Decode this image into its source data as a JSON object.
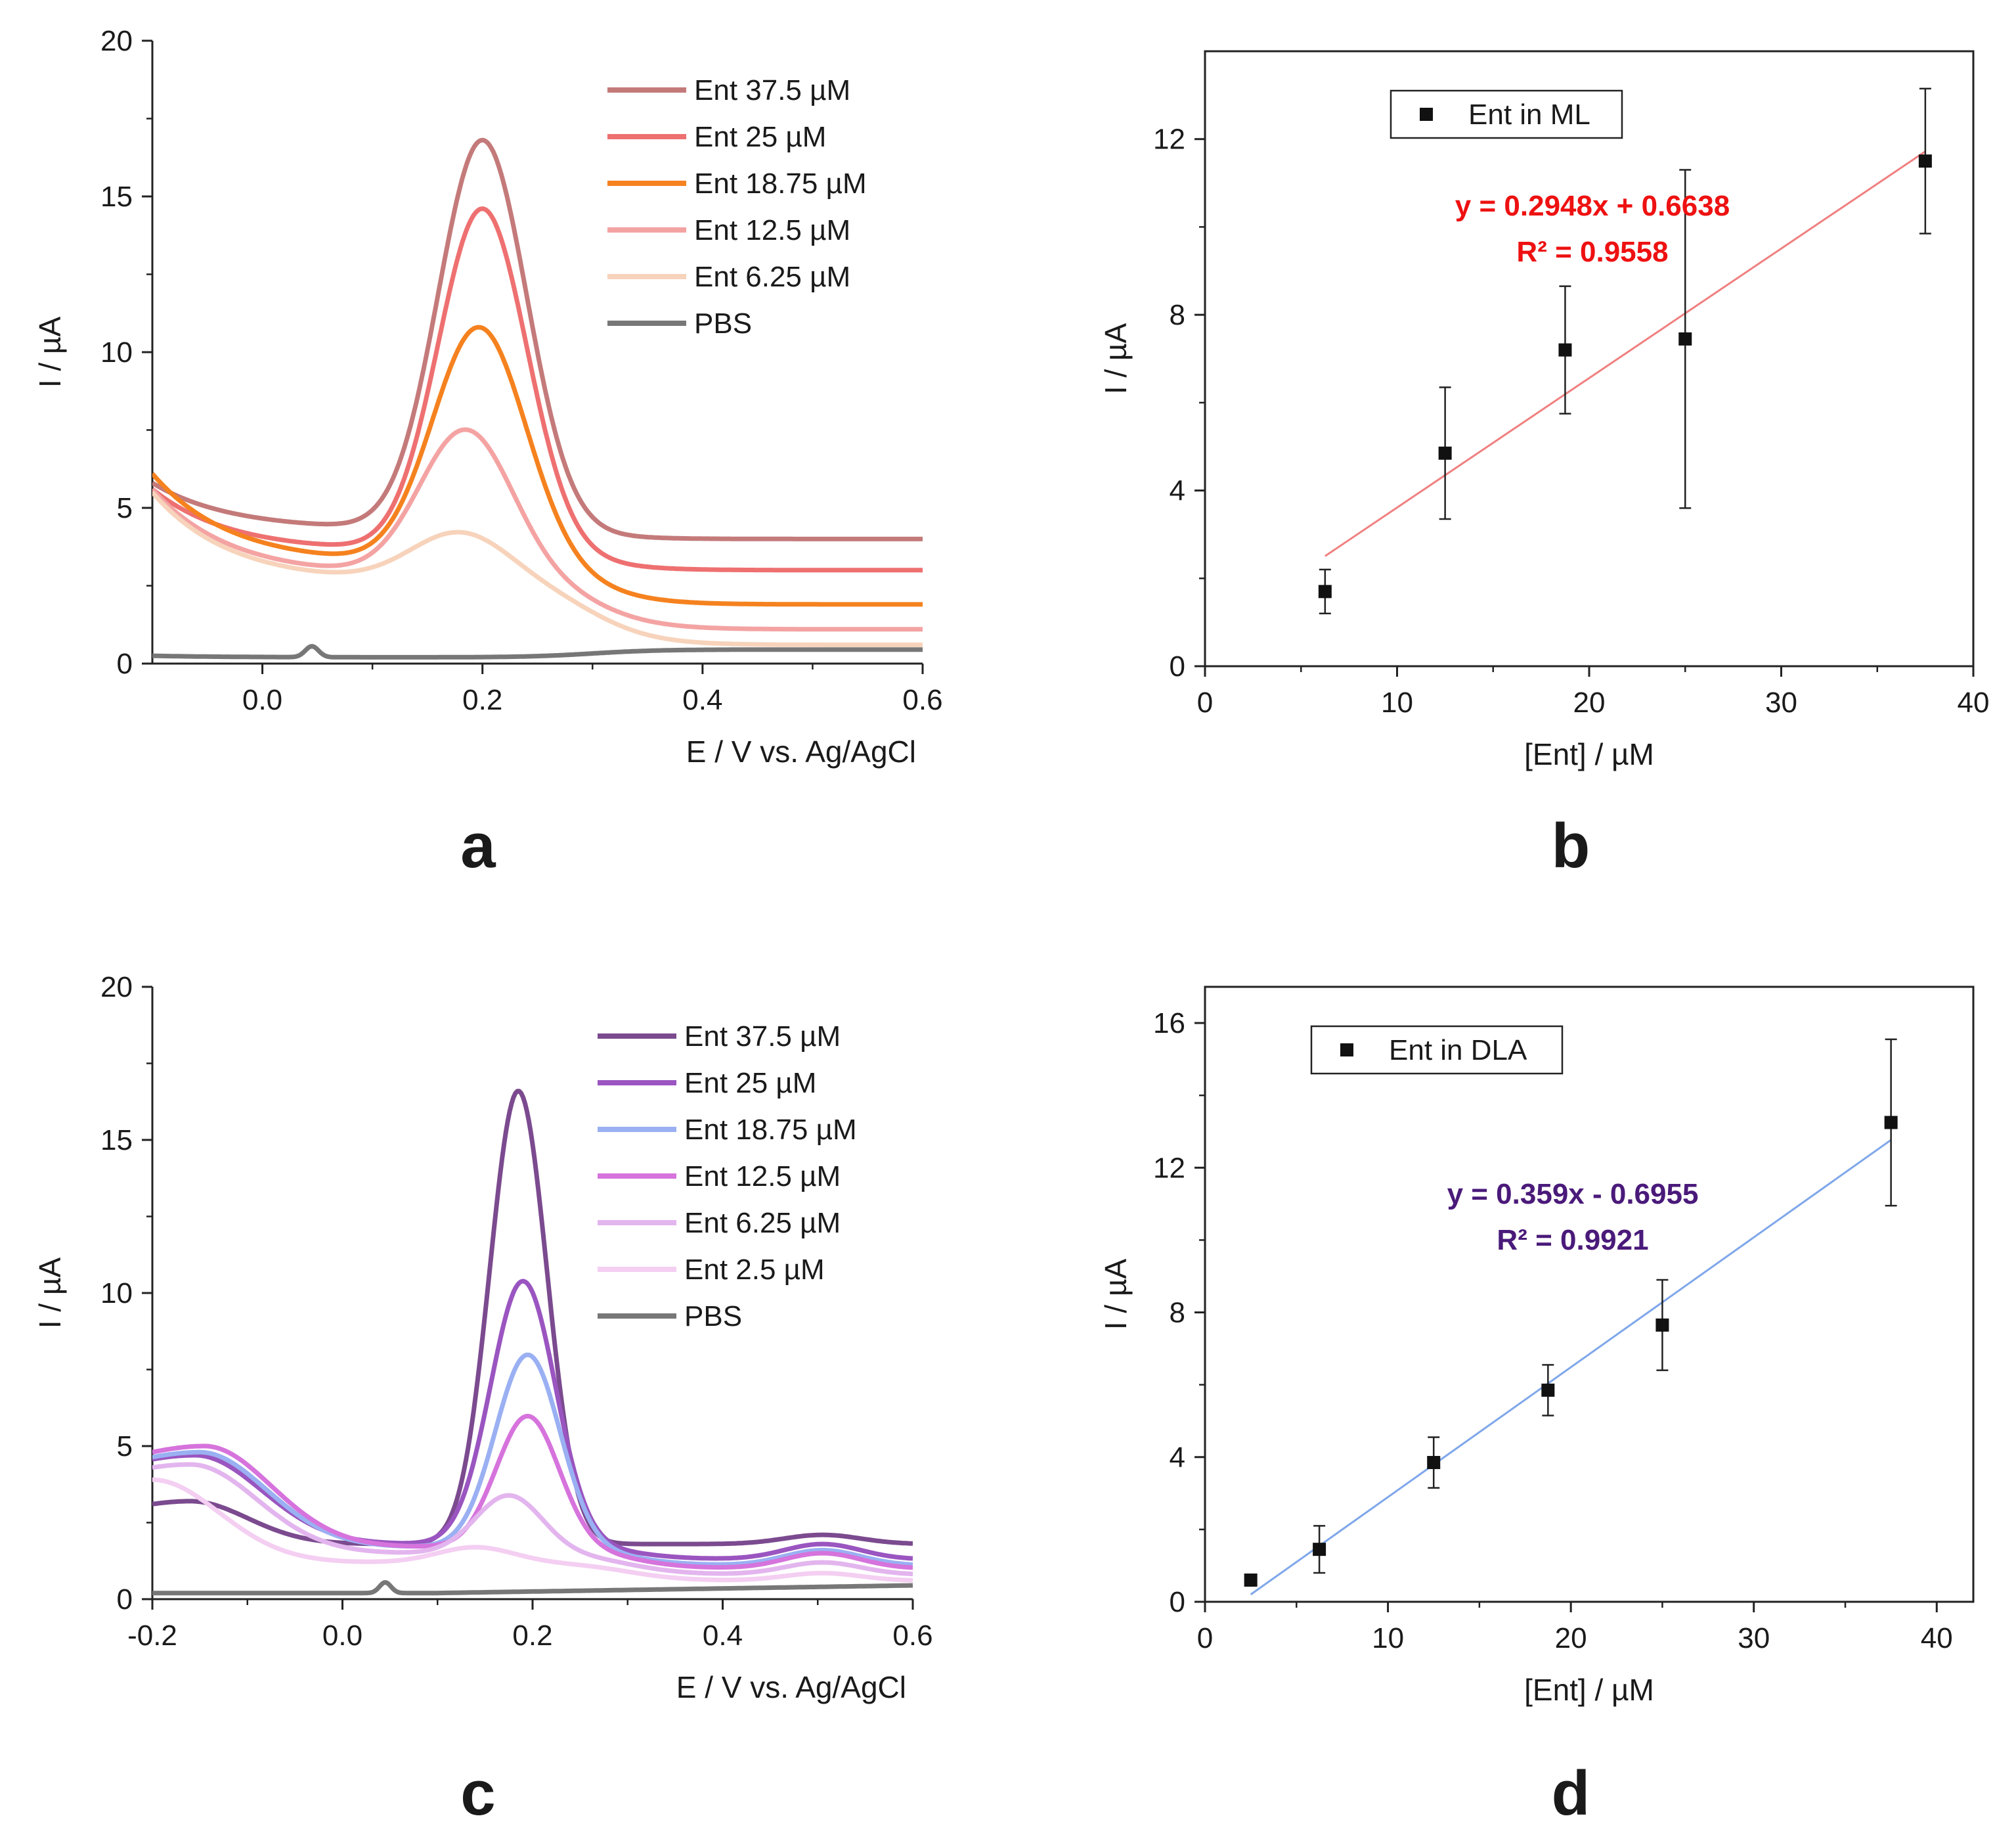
{
  "figure": {
    "panel_letters": [
      "a",
      "b",
      "c",
      "d"
    ]
  },
  "chart_data": [
    {
      "panel": "a",
      "type": "line",
      "title": "",
      "xlabel": "E / V vs. Ag/AgCl",
      "ylabel": "I / µA",
      "xlim": [
        -0.1,
        0.6
      ],
      "ylim": [
        0,
        20
      ],
      "xticks": [
        0.0,
        0.2,
        0.4,
        0.6
      ],
      "xtick_labels": [
        "0.0",
        "0.2",
        "0.4",
        "0.6"
      ],
      "yticks": [
        0,
        5,
        10,
        15,
        20
      ],
      "ytick_labels": [
        "0",
        "5",
        "10",
        "15",
        "20"
      ],
      "legend_position": "top-right",
      "series": [
        {
          "name": "Ent 37.5 µM",
          "color": "#c47a7a",
          "start": 5.8,
          "base": 4.3,
          "peak_x": 0.2,
          "peak_height": 12.5,
          "peak_width": 0.04,
          "tail": 4.0
        },
        {
          "name": "Ent 25 µM",
          "color": "#ee7070",
          "start": 5.6,
          "base": 3.6,
          "peak_x": 0.2,
          "peak_height": 11.0,
          "peak_width": 0.04,
          "tail": 3.0
        },
        {
          "name": "Ent 18.75 µM",
          "color": "#f5821f",
          "start": 6.1,
          "base": 3.2,
          "peak_x": 0.197,
          "peak_height": 7.6,
          "peak_width": 0.042,
          "tail": 1.9
        },
        {
          "name": "Ent 12.5 µM",
          "color": "#f4a3a3",
          "start": 5.6,
          "base": 2.8,
          "peak_x": 0.185,
          "peak_height": 4.7,
          "peak_width": 0.042,
          "tail": 1.1
        },
        {
          "name": "Ent 6.25 µM",
          "color": "#f7d3bb",
          "start": 5.5,
          "base": 2.6,
          "peak_x": 0.18,
          "peak_height": 1.6,
          "peak_width": 0.045,
          "tail": 0.6
        },
        {
          "name": "PBS",
          "color": "#777777",
          "start": 0.25,
          "base": 0.2,
          "peak_x": 0.045,
          "peak_height": 0.35,
          "peak_width": 0.006,
          "tail": 0.45
        }
      ]
    },
    {
      "panel": "b",
      "type": "scatter",
      "title": "",
      "xlabel": "[Ent] / µM",
      "ylabel": "I / µA",
      "xlim": [
        0,
        40
      ],
      "ylim": [
        0,
        14
      ],
      "xticks": [
        0,
        10,
        20,
        30,
        40
      ],
      "xtick_labels": [
        "0",
        "10",
        "20",
        "30",
        "40"
      ],
      "yticks": [
        0,
        4,
        8,
        12
      ],
      "ytick_labels": [
        "0",
        "4",
        "8",
        "12"
      ],
      "legend": "Ent in ML",
      "legend_position": "top-left",
      "x": [
        6.25,
        12.5,
        18.75,
        25,
        37.5
      ],
      "y": [
        1.7,
        4.85,
        7.2,
        7.45,
        11.5
      ],
      "yerr": [
        0.5,
        1.5,
        1.45,
        3.85,
        1.65
      ],
      "fit": {
        "slope": 0.2948,
        "intercept": 0.6638,
        "x_range": [
          6.25,
          37.5
        ],
        "color": "#f08080"
      },
      "equation": "y = 0.2948x + 0.6638",
      "r_squared": "R² = 0.9558",
      "equation_color": "#ee1111"
    },
    {
      "panel": "c",
      "type": "line",
      "title": "",
      "xlabel": "E / V vs. Ag/AgCl",
      "ylabel": "I / µA",
      "xlim": [
        -0.2,
        0.6
      ],
      "ylim": [
        0,
        20
      ],
      "xticks": [
        -0.2,
        0.0,
        0.2,
        0.4,
        0.6
      ],
      "xtick_labels": [
        "-0.2",
        "0.0",
        "0.2",
        "0.4",
        "0.6"
      ],
      "yticks": [
        0,
        5,
        10,
        15,
        20
      ],
      "ytick_labels": [
        "0",
        "5",
        "10",
        "15",
        "20"
      ],
      "legend_position": "top-right",
      "series": [
        {
          "name": "Ent 37.5 µM",
          "color": "#7b4a8f",
          "bump_h": 3.2,
          "bump_x": -0.16,
          "bump_w": 0.06,
          "base": 1.8,
          "peak_x": 0.185,
          "peak_height": 14.8,
          "peak_width": 0.03,
          "tail": 1.8,
          "hump_h": 0.3
        },
        {
          "name": "Ent 25 µM",
          "color": "#9a55c0",
          "bump_h": 4.7,
          "bump_x": -0.155,
          "bump_w": 0.07,
          "base": 1.8,
          "peak_x": 0.19,
          "peak_height": 8.6,
          "peak_width": 0.034,
          "tail": 1.3,
          "hump_h": 0.5
        },
        {
          "name": "Ent 18.75 µM",
          "color": "#9ab0f2",
          "bump_h": 4.8,
          "bump_x": -0.15,
          "bump_w": 0.07,
          "base": 1.7,
          "peak_x": 0.195,
          "peak_height": 6.3,
          "peak_width": 0.034,
          "tail": 1.1,
          "hump_h": 0.5
        },
        {
          "name": "Ent 12.5 µM",
          "color": "#d673dc",
          "bump_h": 5.0,
          "bump_x": -0.145,
          "bump_w": 0.07,
          "base": 1.7,
          "peak_x": 0.195,
          "peak_height": 4.3,
          "peak_width": 0.033,
          "tail": 1.0,
          "hump_h": 0.5
        },
        {
          "name": "Ent 6.25 µM",
          "color": "#e3b5ee",
          "bump_h": 4.4,
          "bump_x": -0.16,
          "bump_w": 0.07,
          "base": 1.5,
          "peak_x": 0.175,
          "peak_height": 1.9,
          "peak_width": 0.035,
          "tail": 0.8,
          "hump_h": 0.4
        },
        {
          "name": "Ent 2.5 µM",
          "color": "#f4cff2",
          "bump_h": 3.9,
          "bump_x": -0.2,
          "bump_w": 0.07,
          "base": 1.2,
          "peak_x": 0.14,
          "peak_height": 0.5,
          "peak_width": 0.04,
          "tail": 0.6,
          "hump_h": 0.25
        },
        {
          "name": "PBS",
          "color": "#777777",
          "flat": true,
          "start": 0.25,
          "base": 0.2,
          "peak_x": 0.045,
          "peak_height": 0.35,
          "peak_width": 0.006,
          "tail": 0.45
        }
      ]
    },
    {
      "panel": "d",
      "type": "scatter",
      "title": "",
      "xlabel": "[Ent] / µM",
      "ylabel": "I / µA",
      "xlim": [
        0,
        42
      ],
      "ylim": [
        0,
        17
      ],
      "xticks": [
        0,
        10,
        20,
        30,
        40
      ],
      "xtick_labels": [
        "0",
        "10",
        "20",
        "30",
        "40"
      ],
      "yticks": [
        0,
        4,
        8,
        12,
        16
      ],
      "ytick_labels": [
        "0",
        "4",
        "8",
        "12",
        "16"
      ],
      "legend": "Ent in DLA",
      "legend_position": "top-left",
      "x": [
        2.5,
        6.25,
        12.5,
        18.75,
        25,
        37.5
      ],
      "y": [
        0.6,
        1.45,
        3.85,
        5.85,
        7.65,
        13.25
      ],
      "yerr": [
        0.0,
        0.65,
        0.7,
        0.7,
        1.25,
        2.3
      ],
      "fit": {
        "slope": 0.359,
        "intercept": -0.6955,
        "x_range": [
          2.5,
          37.5
        ],
        "color": "#7fa7ea"
      },
      "equation": "y = 0.359x - 0.6955",
      "r_squared": "R² = 0.9921",
      "equation_color": "#4a1a7a"
    }
  ]
}
